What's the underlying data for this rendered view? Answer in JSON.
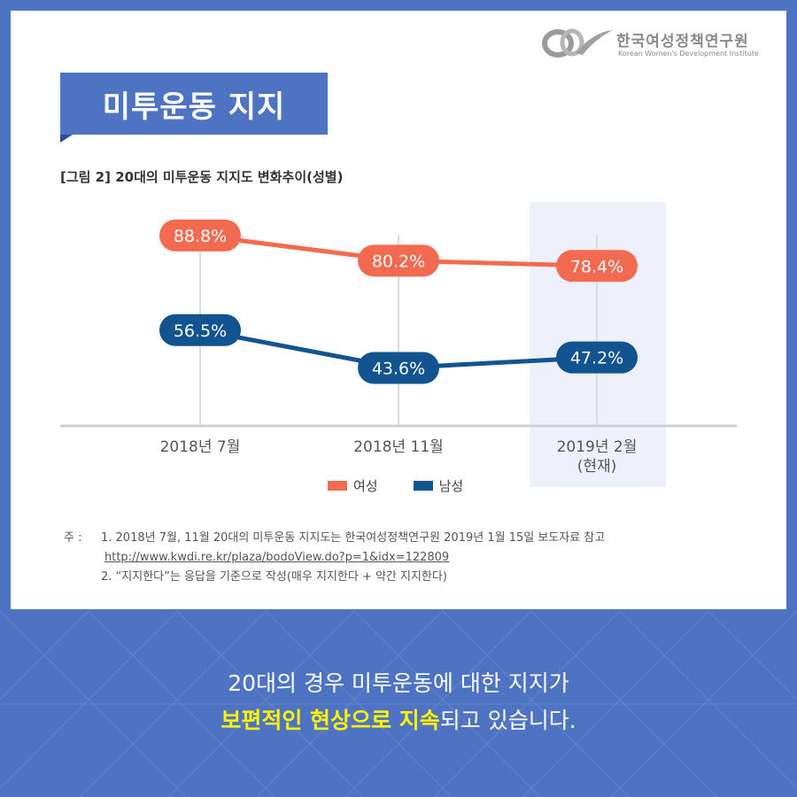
{
  "brand": {
    "name_ko": "한국여성정책연구원",
    "name_en": "Korean Women's Development Institute"
  },
  "title": "미투운동 지지",
  "caption": "[그림 2] 20대의 미투운동 지지도 변화추이(성별)",
  "chart_data": {
    "type": "line",
    "categories": [
      "2018년 7월",
      "2018년 11월",
      "2019년 2월\n(현재)"
    ],
    "categories_lines": [
      [
        "2018년 7월"
      ],
      [
        "2018년 11월"
      ],
      [
        "2019년 2월",
        "(현재)"
      ]
    ],
    "series": [
      {
        "name": "여성",
        "values": [
          88.8,
          80.2,
          78.4
        ],
        "color": "#f26b50"
      },
      {
        "name": "남성",
        "values": [
          56.5,
          43.6,
          47.2
        ],
        "color": "#11548f"
      }
    ],
    "value_suffix": "%",
    "highlight_category_index": 2,
    "highlight_color": "#eef1fb",
    "ylim": [
      30,
      100
    ],
    "grid": false,
    "legend_position": "bottom"
  },
  "notes": {
    "prefix": "주 :",
    "items": [
      {
        "text": "1. 2018년 7월, 11월 20대의 미투운동 지지도는 한국여성정책연구원 2019년 1월 15일 보도자료 참고"
      },
      {
        "link": "http://www.kwdi.re.kr/plaza/bodoView.do?p=1&idx=122809"
      },
      {
        "text": "2. “지지한다”는 응답을 기준으로 작성(매우 지지한다 + 약간 지지한다)"
      }
    ]
  },
  "bottom": {
    "line1": "20대의 경우 미투운동에 대한 지지가",
    "line2_highlight": "보편적인 현상으로 지속",
    "line2_rest": "되고 있습니다."
  },
  "colors": {
    "background": "#4f73c3",
    "accent_yellow": "#fff200"
  }
}
